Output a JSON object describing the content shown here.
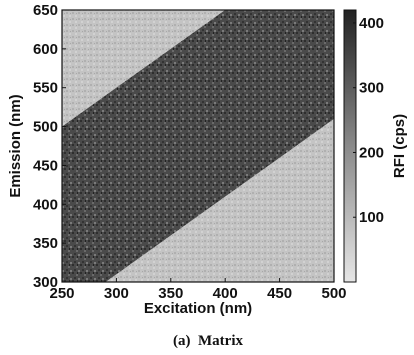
{
  "chart_data": {
    "type": "heatmap",
    "title": "",
    "caption": "(a)  Matrix",
    "xlabel": "Excitation (nm)",
    "ylabel": "Emission (nm)",
    "colorbar_label": "RFI (cps)",
    "xlim": [
      250,
      500
    ],
    "ylim": [
      300,
      650
    ],
    "x_ticks": [
      "250",
      "300",
      "350",
      "400",
      "450",
      "500"
    ],
    "y_ticks": [
      "300",
      "350",
      "400",
      "450",
      "500",
      "550",
      "600",
      "650"
    ],
    "colorbar_range": [
      0,
      420
    ],
    "colorbar_ticks": [
      "100",
      "200",
      "300",
      "400"
    ],
    "colormap": "grayscale",
    "regions": [
      {
        "name": "Upper-left masked region (Rayleigh scatter)",
        "value": 330,
        "boundary": "emission = excitation + 250 (nm)"
      },
      {
        "name": "Fluorescence band",
        "value": 210,
        "between": "emission = excitation + 250 and emission = excitation + 10"
      },
      {
        "name": "Lower-right masked region (emission below excitation)",
        "value": 330,
        "boundary": "emission = excitation + 10 (nm)"
      }
    ]
  }
}
